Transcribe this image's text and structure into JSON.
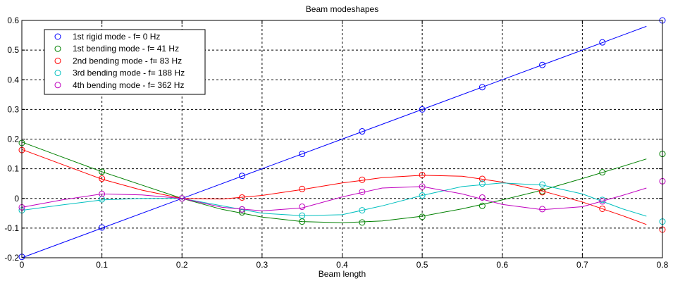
{
  "chart_data": {
    "type": "line",
    "title": "Beam modeshapes",
    "xlabel": "Beam length",
    "ylabel": "",
    "xlim": [
      0,
      0.8
    ],
    "ylim": [
      -0.2,
      0.6
    ],
    "xticks": [
      "0",
      "0.1",
      "0.2",
      "0.3",
      "0.4",
      "0.5",
      "0.6",
      "0.7",
      "0.8"
    ],
    "yticks": [
      "-0.2",
      "-0.1",
      "0",
      "0.1",
      "0.2",
      "0.3",
      "0.4",
      "0.5",
      "0.6"
    ],
    "grid": true,
    "legend_position": "top-left",
    "sample_x": [
      0,
      0.1,
      0.2,
      0.275,
      0.35,
      0.425,
      0.5,
      0.575,
      0.65,
      0.725,
      0.8
    ],
    "series": [
      {
        "name": "1st rigid mode - f= 0 Hz",
        "color": "#0000ff",
        "line": {
          "x": [
            0,
            0.1,
            0.2,
            0.3,
            0.4,
            0.5,
            0.6,
            0.7,
            0.78
          ],
          "y": [
            -0.2,
            -0.1,
            0.0,
            0.1,
            0.2,
            0.3,
            0.4,
            0.5,
            0.58
          ]
        },
        "markers": [
          -0.197,
          -0.098,
          0.0,
          0.076,
          0.15,
          0.226,
          0.3,
          0.375,
          0.45,
          0.526,
          0.6
        ]
      },
      {
        "name": "1st bending mode - f= 41 Hz",
        "color": "#008000",
        "line": {
          "x": [
            0,
            0.05,
            0.1,
            0.15,
            0.2,
            0.25,
            0.3,
            0.35,
            0.4,
            0.45,
            0.5,
            0.55,
            0.6,
            0.65,
            0.7,
            0.75,
            0.78
          ],
          "y": [
            0.19,
            0.14,
            0.09,
            0.045,
            0.0,
            -0.037,
            -0.063,
            -0.078,
            -0.082,
            -0.076,
            -0.06,
            -0.035,
            -0.005,
            0.028,
            0.067,
            0.108,
            0.133
          ]
        },
        "markers": [
          0.187,
          0.09,
          0.0,
          -0.047,
          -0.078,
          -0.081,
          -0.062,
          -0.025,
          0.024,
          0.088,
          0.15
        ]
      },
      {
        "name": "2nd bending mode - f= 83 Hz",
        "color": "#ff0000",
        "line": {
          "x": [
            0,
            0.05,
            0.1,
            0.15,
            0.2,
            0.25,
            0.3,
            0.35,
            0.4,
            0.45,
            0.5,
            0.55,
            0.6,
            0.65,
            0.7,
            0.75,
            0.78
          ],
          "y": [
            0.165,
            0.115,
            0.065,
            0.028,
            0.0,
            -0.002,
            0.01,
            0.03,
            0.052,
            0.07,
            0.078,
            0.075,
            0.055,
            0.025,
            -0.012,
            -0.058,
            -0.088
          ]
        },
        "markers": [
          0.163,
          0.067,
          0.0,
          0.003,
          0.032,
          0.063,
          0.079,
          0.066,
          0.021,
          -0.035,
          -0.105
        ]
      },
      {
        "name": "3rd bending mode - f= 188 Hz",
        "color": "#00bfbf",
        "line": {
          "x": [
            0,
            0.05,
            0.1,
            0.15,
            0.2,
            0.25,
            0.3,
            0.35,
            0.4,
            0.45,
            0.5,
            0.55,
            0.6,
            0.65,
            0.7,
            0.75,
            0.78
          ],
          "y": [
            -0.04,
            -0.022,
            -0.005,
            0.0,
            0.0,
            -0.025,
            -0.05,
            -0.058,
            -0.055,
            -0.025,
            0.01,
            0.04,
            0.052,
            0.045,
            0.015,
            -0.035,
            -0.06
          ]
        },
        "markers": [
          -0.04,
          -0.003,
          0.0,
          -0.037,
          -0.058,
          -0.04,
          0.01,
          0.05,
          0.047,
          -0.005,
          -0.078
        ]
      },
      {
        "name": "4th bending mode - f= 362 Hz",
        "color": "#bf00bf",
        "line": {
          "x": [
            0,
            0.05,
            0.1,
            0.15,
            0.2,
            0.25,
            0.3,
            0.35,
            0.4,
            0.45,
            0.5,
            0.55,
            0.6,
            0.65,
            0.7,
            0.75,
            0.78
          ],
          "y": [
            -0.03,
            -0.005,
            0.015,
            0.012,
            0.0,
            -0.03,
            -0.042,
            -0.032,
            0.005,
            0.035,
            0.04,
            0.015,
            -0.02,
            -0.038,
            -0.028,
            0.01,
            0.035
          ]
        },
        "markers": [
          -0.03,
          0.015,
          0.0,
          -0.037,
          -0.028,
          0.022,
          0.04,
          0.003,
          -0.036,
          -0.01,
          0.058
        ]
      }
    ]
  }
}
